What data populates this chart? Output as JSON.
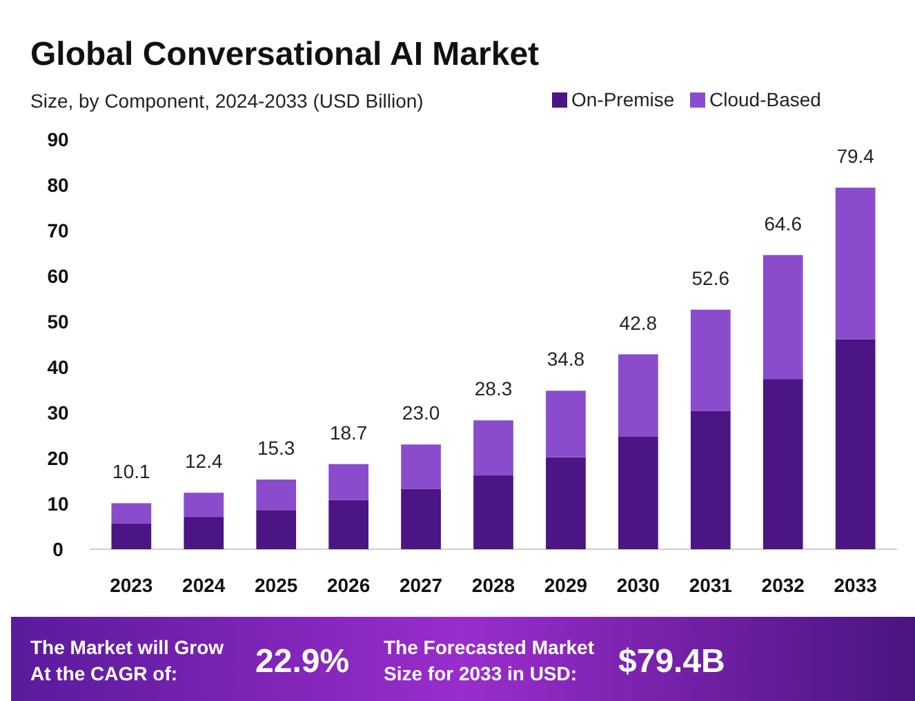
{
  "chart_data": {
    "type": "bar",
    "title": "Global Conversational AI Market",
    "subtitle": "Size, by Component, 2024-2033 (USD Billion)",
    "categories": [
      "2023",
      "2024",
      "2025",
      "2026",
      "2027",
      "2028",
      "2029",
      "2030",
      "2031",
      "2032",
      "2033"
    ],
    "series": [
      {
        "name": "On-Premise",
        "color": "#4b1583",
        "values": [
          5.6,
          7.1,
          8.6,
          10.8,
          13.2,
          16.2,
          20.2,
          24.7,
          30.4,
          37.4,
          46.1
        ]
      },
      {
        "name": "Cloud-Based",
        "color": "#8a4ccc",
        "values": [
          4.5,
          5.3,
          6.7,
          7.9,
          9.8,
          12.1,
          14.6,
          18.1,
          22.2,
          27.2,
          33.3
        ]
      }
    ],
    "stacked": true,
    "totals": [
      "10.1",
      "12.4",
      "15.3",
      "18.7",
      "23.0",
      "28.3",
      "34.8",
      "42.8",
      "52.6",
      "64.6",
      "79.4"
    ],
    "ylim": [
      0,
      90
    ],
    "yticks": [
      0,
      10,
      20,
      30,
      40,
      50,
      60,
      70,
      80,
      90
    ],
    "grid": false,
    "legend": "top right",
    "annotations": [
      "The Market will Grow At the CAGR of:",
      "22.9%",
      "The Forecasted Market Size for 2033 in USD:",
      "$79.4B"
    ]
  }
}
